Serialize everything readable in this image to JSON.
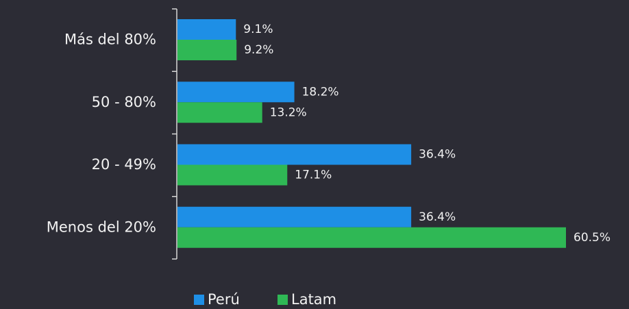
{
  "chart_data": {
    "type": "bar",
    "orientation": "horizontal",
    "categories": [
      "Más del 80%",
      "50 - 80%",
      "20 - 49%",
      "Menos del 20%"
    ],
    "series": [
      {
        "name": "Perú",
        "color": "#1e8fe6",
        "values": [
          9.1,
          18.2,
          36.4,
          36.4
        ],
        "value_labels": [
          "9.1%",
          "18.2%",
          "36.4%",
          "36.4%"
        ]
      },
      {
        "name": "Latam",
        "color": "#2fb855",
        "values": [
          9.2,
          13.2,
          17.1,
          60.5
        ],
        "value_labels": [
          "9.2%",
          "13.2%",
          "17.1%",
          "60.5%"
        ]
      }
    ],
    "legend": "bottom"
  }
}
